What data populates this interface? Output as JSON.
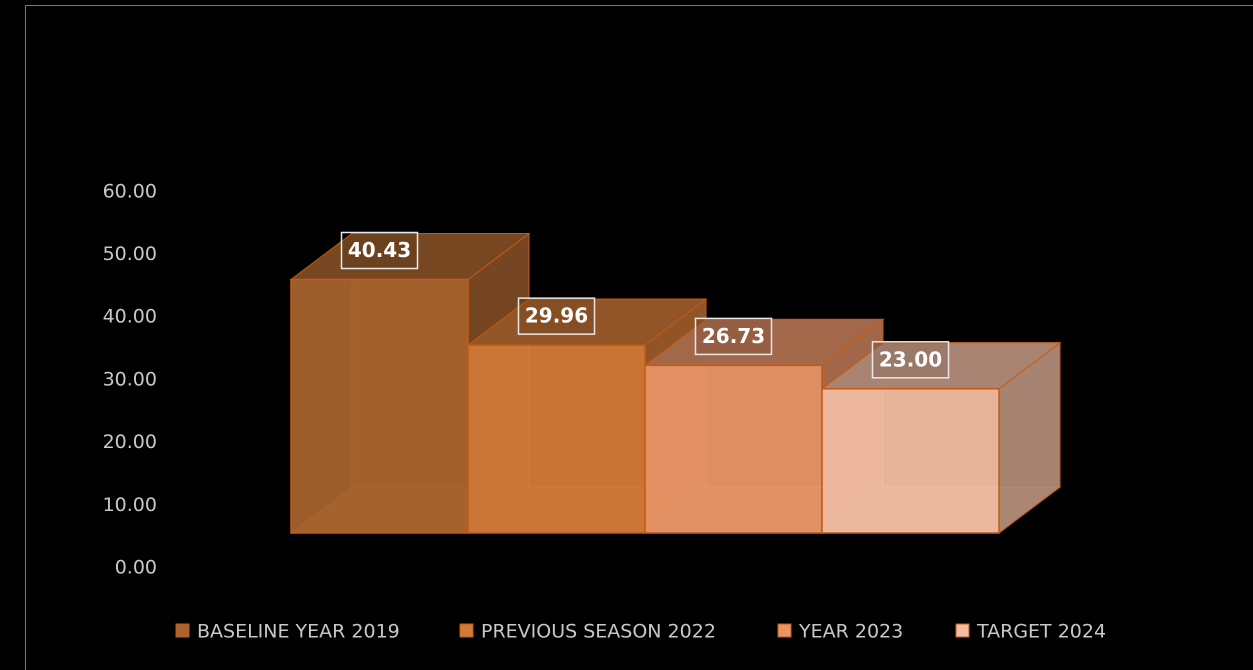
{
  "chart_data": {
    "type": "bar3d",
    "categories": [
      null
    ],
    "series": [
      {
        "name": "BASELINE YEAR 2019",
        "color": "#a9652f",
        "values": [
          40.43
        ],
        "value_labels": [
          "40.43"
        ]
      },
      {
        "name": "PREVIOUS SEASON 2022",
        "color": "#d07a38",
        "values": [
          29.96
        ],
        "value_labels": [
          "29.96"
        ]
      },
      {
        "name": "YEAR 2023",
        "color": "#e99568",
        "values": [
          26.73
        ],
        "value_labels": [
          "26.73"
        ]
      },
      {
        "name": "TARGET 2024",
        "color": "#f1bda3",
        "values": [
          23
        ],
        "value_labels": [
          "23.00"
        ]
      }
    ],
    "ylim": [
      0,
      60
    ],
    "yticks": [
      {
        "value": 0,
        "label": "0.00"
      },
      {
        "value": 10,
        "label": "10.00"
      },
      {
        "value": 20,
        "label": "20.00"
      },
      {
        "value": 30,
        "label": "30.00"
      },
      {
        "value": 40,
        "label": "40.00"
      },
      {
        "value": 50,
        "label": "50.00"
      },
      {
        "value": 60,
        "label": "60.00"
      }
    ]
  }
}
